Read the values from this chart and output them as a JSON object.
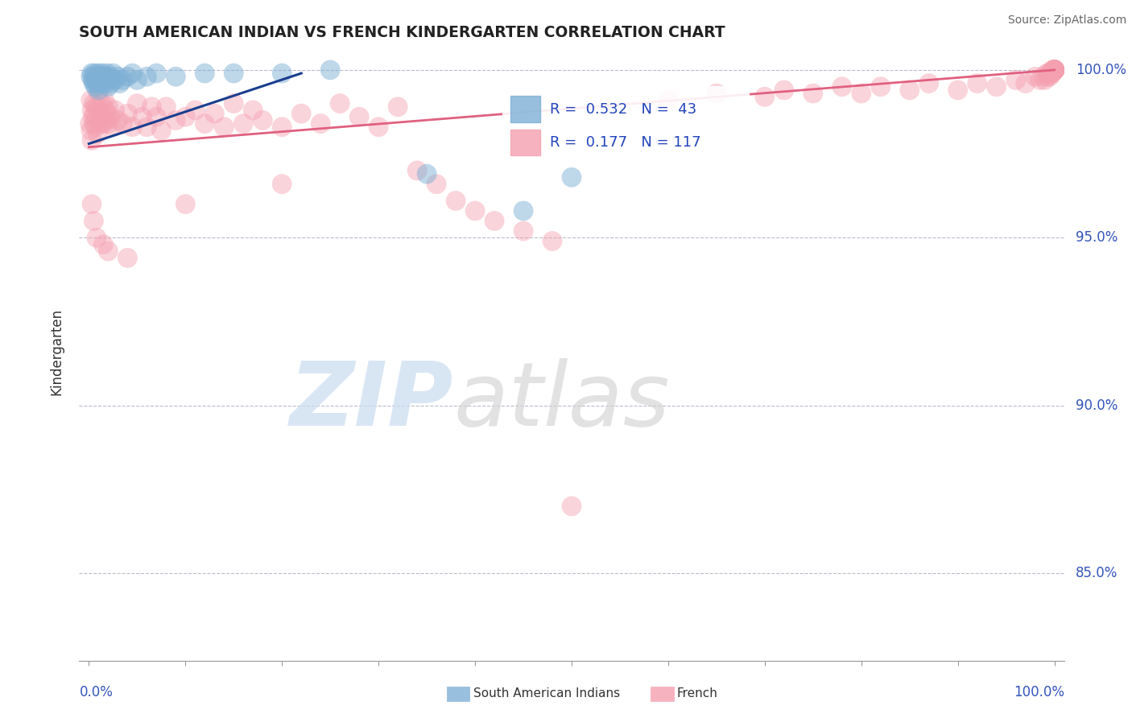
{
  "title": "SOUTH AMERICAN INDIAN VS FRENCH KINDERGARTEN CORRELATION CHART",
  "source": "Source: ZipAtlas.com",
  "ylabel": "Kindergarten",
  "blue_color": "#7EB0D5",
  "pink_color": "#F4A0B0",
  "blue_line_color": "#1A3F8F",
  "pink_line_color": "#E06080",
  "watermark_zip": "ZIP",
  "watermark_atlas": "atlas",
  "legend_text1": "R =  0.532   N =  43",
  "legend_text2": "R =  0.177   N = 117",
  "y_tick_vals": [
    0.85,
    0.9,
    0.95,
    1.0
  ],
  "y_tick_labels": [
    "85.0%",
    "90.0%",
    "95.0%",
    "100.0%"
  ],
  "ylim_min": 0.824,
  "ylim_max": 1.008,
  "xlim_min": -0.01,
  "xlim_max": 1.01
}
